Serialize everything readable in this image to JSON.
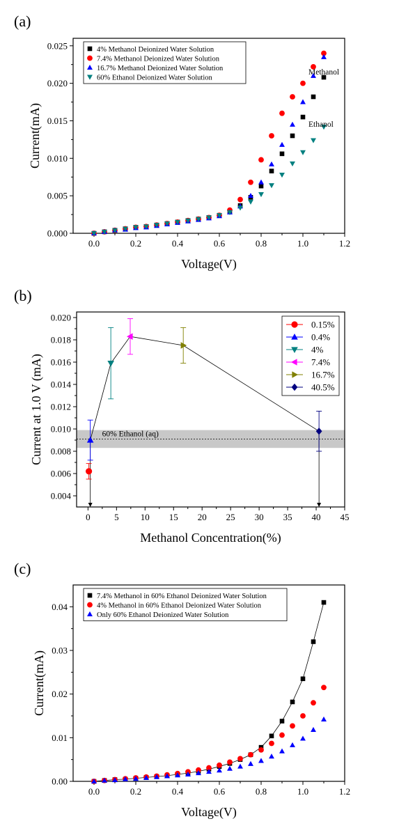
{
  "chart_data": [
    {
      "panel_label": "(a)",
      "type": "scatter",
      "xlabel": "Voltage(V)",
      "ylabel": "Current(mA)",
      "xlim": [
        -0.1,
        1.2
      ],
      "ylim": [
        0,
        0.026
      ],
      "xticks": [
        "0.0",
        "0.2",
        "0.4",
        "0.6",
        "0.8",
        "1.0",
        "1.2"
      ],
      "yticks": [
        "0.000",
        "0.005",
        "0.010",
        "0.015",
        "0.020",
        "0.025"
      ],
      "legend_position": "top-left",
      "series": [
        {
          "name": "4% Methanol Deionized Water Solution",
          "marker": "square",
          "color": "#000000",
          "x": [
            0.0,
            0.05,
            0.1,
            0.15,
            0.2,
            0.25,
            0.3,
            0.35,
            0.4,
            0.45,
            0.5,
            0.55,
            0.6,
            0.65,
            0.7,
            0.75,
            0.8,
            0.85,
            0.9,
            0.95,
            1.0,
            1.05,
            1.1
          ],
          "y": [
            0.0,
            0.0002,
            0.0004,
            0.0006,
            0.0008,
            0.0009,
            0.0011,
            0.0013,
            0.0015,
            0.0017,
            0.0019,
            0.0021,
            0.0024,
            0.0029,
            0.0037,
            0.0048,
            0.0063,
            0.0083,
            0.0106,
            0.013,
            0.0155,
            0.0182,
            0.0208
          ]
        },
        {
          "name": "7.4% Methanol Deionized Water Solution",
          "marker": "circle",
          "color": "#ff0000",
          "x": [
            0.0,
            0.05,
            0.1,
            0.15,
            0.2,
            0.25,
            0.3,
            0.35,
            0.4,
            0.45,
            0.5,
            0.55,
            0.6,
            0.65,
            0.7,
            0.75,
            0.8,
            0.85,
            0.9,
            0.95,
            1.0,
            1.05,
            1.1
          ],
          "y": [
            0.0,
            0.0002,
            0.0004,
            0.0006,
            0.0008,
            0.0009,
            0.0011,
            0.0013,
            0.0015,
            0.0017,
            0.0019,
            0.0021,
            0.0024,
            0.0031,
            0.0045,
            0.0068,
            0.0098,
            0.013,
            0.016,
            0.0182,
            0.02,
            0.0222,
            0.024
          ]
        },
        {
          "name": "16.7% Methanol Deionized Water Solution",
          "marker": "triangle-up",
          "color": "#0000ff",
          "x": [
            0.0,
            0.05,
            0.1,
            0.15,
            0.2,
            0.25,
            0.3,
            0.35,
            0.4,
            0.45,
            0.5,
            0.55,
            0.6,
            0.65,
            0.7,
            0.75,
            0.8,
            0.85,
            0.9,
            0.95,
            1.0,
            1.05,
            1.1
          ],
          "y": [
            0.0,
            0.0002,
            0.0004,
            0.0005,
            0.0007,
            0.0008,
            0.001,
            0.0012,
            0.0014,
            0.0016,
            0.0018,
            0.002,
            0.0023,
            0.0028,
            0.0036,
            0.005,
            0.0068,
            0.0092,
            0.0118,
            0.0145,
            0.0175,
            0.021,
            0.0235
          ]
        },
        {
          "name": "60%  Ethanol Deionized Water Solution",
          "marker": "triangle-down",
          "color": "#008080",
          "x": [
            0.0,
            0.05,
            0.1,
            0.15,
            0.2,
            0.25,
            0.3,
            0.35,
            0.4,
            0.45,
            0.5,
            0.55,
            0.6,
            0.65,
            0.7,
            0.75,
            0.8,
            0.85,
            0.9,
            0.95,
            1.0,
            1.05,
            1.1
          ],
          "y": [
            0.0,
            0.0002,
            0.0004,
            0.0006,
            0.0008,
            0.0009,
            0.0011,
            0.0013,
            0.0015,
            0.0017,
            0.0019,
            0.0021,
            0.0024,
            0.0028,
            0.0034,
            0.0042,
            0.0052,
            0.0064,
            0.0078,
            0.0093,
            0.0108,
            0.0124,
            0.0142
          ]
        }
      ],
      "annotations": [
        "Methanol",
        "Ethanol"
      ]
    },
    {
      "panel_label": "(b)",
      "type": "scatter",
      "xlabel": "Methanol Concentration(%)",
      "ylabel": "Current at 1.0 V (mA)",
      "xlim": [
        -2,
        45
      ],
      "ylim": [
        0.003,
        0.0205
      ],
      "xticks": [
        "0",
        "5",
        "10",
        "15",
        "20",
        "25",
        "30",
        "35",
        "40",
        "45"
      ],
      "yticks": [
        "0.004",
        "0.006",
        "0.008",
        "0.010",
        "0.012",
        "0.014",
        "0.016",
        "0.018",
        "0.020"
      ],
      "legend_position": "top-right",
      "series": [
        {
          "name": "0.15%",
          "marker": "circle",
          "color": "#ff0000",
          "x": 0.15,
          "y": 0.0062,
          "err": 0.0007
        },
        {
          "name": "0.4%",
          "marker": "triangle-up",
          "color": "#0000ff",
          "x": 0.4,
          "y": 0.009,
          "err": 0.0018
        },
        {
          "name": "4%",
          "marker": "triangle-down",
          "color": "#008080",
          "x": 4.0,
          "y": 0.0159,
          "err": 0.0032
        },
        {
          "name": "7.4%",
          "marker": "triangle-left",
          "color": "#ff00ff",
          "x": 7.4,
          "y": 0.0183,
          "err": 0.0016
        },
        {
          "name": "16.7%",
          "marker": "triangle-right",
          "color": "#808000",
          "x": 16.7,
          "y": 0.0175,
          "err": 0.0016
        },
        {
          "name": "40.5%",
          "marker": "diamond",
          "color": "#000080",
          "x": 40.5,
          "y": 0.0098,
          "err": 0.0018
        }
      ],
      "band": {
        "label": "60% Ethanol (aq)",
        "center": 0.0091,
        "low": 0.0083,
        "high": 0.0099
      }
    },
    {
      "panel_label": "(c)",
      "type": "scatter",
      "xlabel": "Voltage(V)",
      "ylabel": "Current(mA)",
      "xlim": [
        -0.1,
        1.2
      ],
      "ylim": [
        0,
        0.045
      ],
      "xticks": [
        "0.0",
        "0.2",
        "0.4",
        "0.6",
        "0.8",
        "1.0",
        "1.2"
      ],
      "yticks": [
        "0.00",
        "0.01",
        "0.02",
        "0.03",
        "0.04"
      ],
      "legend_position": "top-left",
      "series": [
        {
          "name": "7.4% Methanol in 60% Ethanol Deionized Water Solution",
          "marker": "square",
          "color": "#000000",
          "x": [
            0.0,
            0.05,
            0.1,
            0.15,
            0.2,
            0.25,
            0.3,
            0.35,
            0.4,
            0.45,
            0.5,
            0.55,
            0.6,
            0.65,
            0.7,
            0.75,
            0.8,
            0.85,
            0.9,
            0.95,
            1.0,
            1.05,
            1.1
          ],
          "y": [
            0.0,
            0.0002,
            0.0004,
            0.0005,
            0.0007,
            0.0009,
            0.0011,
            0.0013,
            0.0016,
            0.0019,
            0.0023,
            0.0028,
            0.0034,
            0.0041,
            0.005,
            0.0061,
            0.0078,
            0.0104,
            0.0138,
            0.0182,
            0.0235,
            0.032,
            0.041
          ]
        },
        {
          "name": "4% Methanol in 60% Ethanol Deionized Water Solution",
          "marker": "circle",
          "color": "#ff0000",
          "x": [
            0.0,
            0.05,
            0.1,
            0.15,
            0.2,
            0.25,
            0.3,
            0.35,
            0.4,
            0.45,
            0.5,
            0.55,
            0.6,
            0.65,
            0.7,
            0.75,
            0.8,
            0.85,
            0.9,
            0.95,
            1.0,
            1.05,
            1.1
          ],
          "y": [
            0.0,
            0.0002,
            0.0004,
            0.0006,
            0.0008,
            0.001,
            0.0012,
            0.0015,
            0.0018,
            0.0022,
            0.0026,
            0.0031,
            0.0037,
            0.0044,
            0.0052,
            0.0061,
            0.0072,
            0.0087,
            0.0106,
            0.0127,
            0.015,
            0.018,
            0.0215
          ]
        },
        {
          "name": "Only 60% Ethanol Deionized Water Solution",
          "marker": "triangle-up",
          "color": "#0000ff",
          "x": [
            0.0,
            0.05,
            0.1,
            0.15,
            0.2,
            0.25,
            0.3,
            0.35,
            0.4,
            0.45,
            0.5,
            0.55,
            0.6,
            0.65,
            0.7,
            0.75,
            0.8,
            0.85,
            0.9,
            0.95,
            1.0,
            1.05,
            1.1
          ],
          "y": [
            0.0,
            0.0002,
            0.0003,
            0.0005,
            0.0006,
            0.0008,
            0.001,
            0.0012,
            0.0014,
            0.0016,
            0.0019,
            0.0022,
            0.0025,
            0.0029,
            0.0034,
            0.004,
            0.0047,
            0.0057,
            0.0069,
            0.0083,
            0.0098,
            0.0118,
            0.0142
          ]
        }
      ]
    }
  ]
}
